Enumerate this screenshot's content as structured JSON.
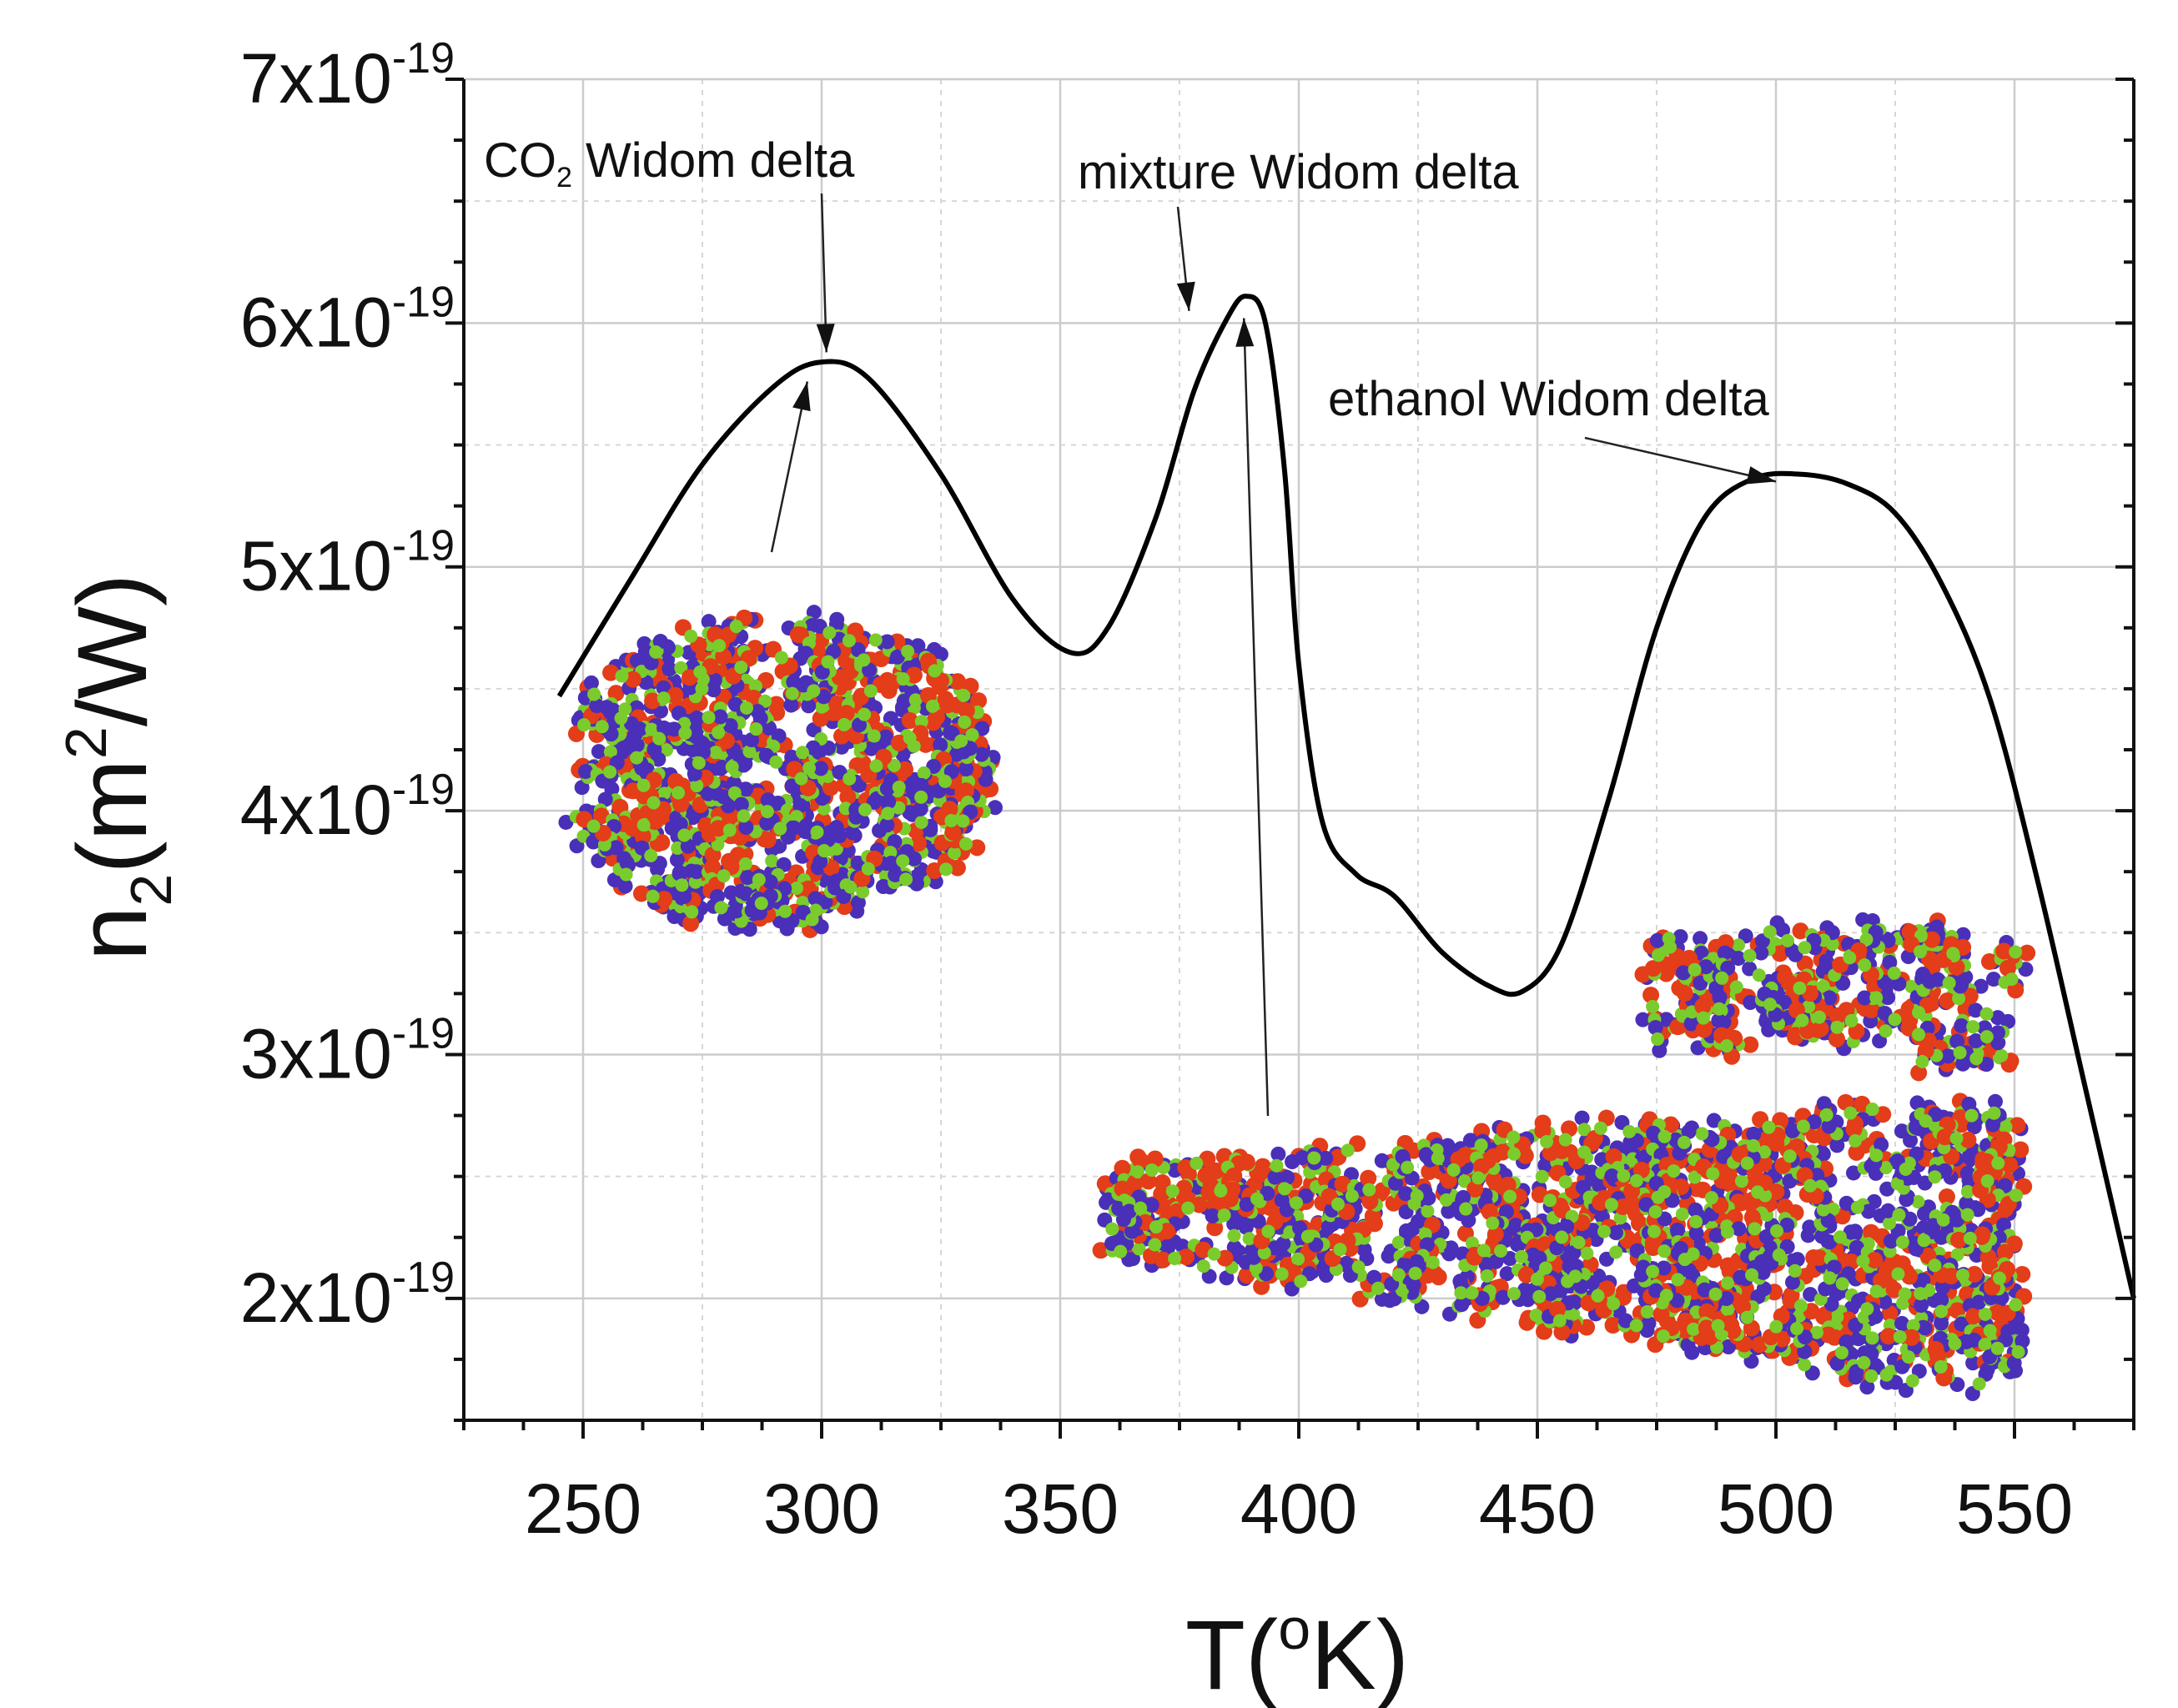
{
  "chart_data": {
    "type": "line",
    "title": "",
    "xlabel": "T(ºK)",
    "xlabel_parts": {
      "base": "T(",
      "sup": "o",
      "rest": "K)"
    },
    "ylabel": "n2(m2/W)",
    "ylabel_parts": {
      "pre": "n",
      "sub": "2",
      "mid": "(m",
      "sup": "2",
      "post": "/W)"
    },
    "xlim": [
      225,
      575
    ],
    "ylim": [
      1.5e-19,
      7e-19
    ],
    "x_ticks": [
      250,
      300,
      350,
      400,
      450,
      500,
      550
    ],
    "x_tick_labels": [
      "250",
      "300",
      "350",
      "400",
      "450",
      "500",
      "550"
    ],
    "y_ticks": [
      2e-19,
      3e-19,
      4e-19,
      5e-19,
      6e-19,
      7e-19
    ],
    "y_tick_labels": [
      {
        "mant": "2x10",
        "exp": "-19"
      },
      {
        "mant": "3x10",
        "exp": "-19"
      },
      {
        "mant": "4x10",
        "exp": "-19"
      },
      {
        "mant": "5x10",
        "exp": "-19"
      },
      {
        "mant": "6x10",
        "exp": "-19"
      },
      {
        "mant": "7x10",
        "exp": "-19"
      }
    ],
    "grid": true,
    "series": [
      {
        "name": "n2",
        "color": "#000000",
        "x": [
          245,
          260,
          275,
          290,
          300,
          310,
          325,
          340,
          352,
          360,
          370,
          378,
          385,
          389,
          393,
          397,
          400,
          405,
          412,
          420,
          430,
          440,
          447,
          455,
          465,
          475,
          485,
          495,
          505,
          515,
          525,
          535,
          545,
          555,
          565,
          575
        ],
        "y": [
          4.47e-19,
          4.95e-19,
          5.42e-19,
          5.74e-19,
          5.84e-19,
          5.77e-19,
          5.38e-19,
          4.87e-19,
          4.65e-19,
          4.75e-19,
          5.2e-19,
          5.72e-19,
          6.02e-19,
          6.11e-19,
          6e-19,
          5.4e-19,
          4.6e-19,
          3.95e-19,
          3.74e-19,
          3.65e-19,
          3.42e-19,
          3.28e-19,
          3.26e-19,
          3.45e-19,
          4.05e-19,
          4.75e-19,
          5.2e-19,
          5.36e-19,
          5.38e-19,
          5.34e-19,
          5.22e-19,
          4.92e-19,
          4.45e-19,
          3.7e-19,
          2.85e-19,
          2e-19
        ]
      }
    ],
    "annotations": [
      {
        "text_main": "CO",
        "text_sub": "2",
        "text_rest": " Widom delta",
        "target_x": 301,
        "target_y": 5.88e-19
      },
      {
        "text": "mixture Widom delta",
        "target_x": 377,
        "target_y": 6.05e-19
      },
      {
        "text": "ethanol Widom delta",
        "target_x": 500,
        "target_y": 5.35e-19
      }
    ],
    "molecular_insets": [
      "CO2 cluster",
      "ethanol-CO2 mixture",
      "ethanol cluster"
    ]
  },
  "colors": {
    "atom_blue": "#4a2fb8",
    "atom_green": "#7acc2c",
    "atom_red": "#e33d19",
    "curve": "#000000"
  }
}
